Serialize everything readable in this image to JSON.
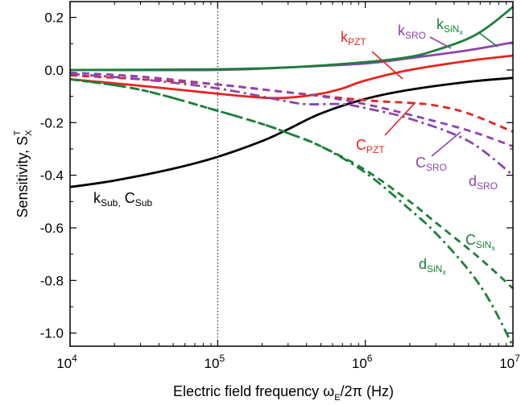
{
  "chart_data": {
    "type": "line",
    "xscale": "log",
    "xlim": [
      10000,
      10000000
    ],
    "ylim": [
      -1.05,
      0.26
    ],
    "xlabel": "Electric field frequency ω_E/2π (Hz)",
    "xlabel_parts": {
      "main": "Electric field frequency  ω",
      "sub": "E",
      "rest": "/2π (Hz)"
    },
    "ylabel_parts": {
      "main": "Sensitivity,  S",
      "sub": "X",
      "sup": "T"
    },
    "x_ticks": [
      {
        "value": 10000,
        "base": "10",
        "exp": "4"
      },
      {
        "value": 100000,
        "base": "10",
        "exp": "5"
      },
      {
        "value": 1000000,
        "base": "10",
        "exp": "6"
      },
      {
        "value": 10000000,
        "base": "10",
        "exp": "7"
      }
    ],
    "y_ticks": [
      {
        "value": 0.2,
        "label": "0.2"
      },
      {
        "value": 0.0,
        "label": "0.0"
      },
      {
        "value": -0.2,
        "label": "-0.2"
      },
      {
        "value": -0.4,
        "label": "-0.4"
      },
      {
        "value": -0.6,
        "label": "-0.6"
      },
      {
        "value": -0.8,
        "label": "-0.8"
      },
      {
        "value": -1.0,
        "label": "-1.0"
      }
    ],
    "reference_line": {
      "x": 100000,
      "style": "dotted"
    },
    "colors": {
      "red": "#e8231f",
      "purple": "#8e44ad",
      "green": "#1c7f3c",
      "black": "#000000"
    },
    "series": [
      {
        "name": "k_Sub, C_Sub",
        "color": "#000000",
        "dash": "solid",
        "x": [
          10000,
          20000,
          50000,
          100000,
          200000,
          300000,
          500000,
          1000000,
          2000000,
          5000000,
          10000000
        ],
        "y": [
          -0.445,
          -0.42,
          -0.375,
          -0.33,
          -0.27,
          -0.225,
          -0.165,
          -0.11,
          -0.075,
          -0.045,
          -0.03
        ]
      },
      {
        "name": "k_PZT",
        "color": "#e8231f",
        "dash": "solid",
        "x": [
          10000,
          30000,
          100000,
          200000,
          300000,
          500000,
          700000,
          1000000,
          2000000,
          5000000,
          10000000
        ],
        "y": [
          -0.035,
          -0.06,
          -0.09,
          -0.105,
          -0.105,
          -0.09,
          -0.07,
          -0.04,
          0.0,
          0.035,
          0.055
        ]
      },
      {
        "name": "C_PZT",
        "color": "#e8231f",
        "dash": "dash",
        "x": [
          10000,
          30000,
          100000,
          300000,
          1000000,
          2000000,
          3000000,
          5000000,
          10000000
        ],
        "y": [
          -0.02,
          -0.035,
          -0.055,
          -0.085,
          -0.115,
          -0.125,
          -0.135,
          -0.165,
          -0.235
        ]
      },
      {
        "name": "k_SRO",
        "color": "#8e44ad",
        "dash": "solid",
        "x": [
          10000,
          100000,
          300000,
          1000000,
          2000000,
          5000000,
          10000000
        ],
        "y": [
          0.0,
          0.0,
          0.01,
          0.025,
          0.045,
          0.075,
          0.105
        ]
      },
      {
        "name": "C_SRO",
        "color": "#8e44ad",
        "dash": "dash",
        "x": [
          10000,
          30000,
          100000,
          300000,
          500000,
          1000000,
          2000000,
          5000000,
          10000000
        ],
        "y": [
          -0.01,
          -0.025,
          -0.055,
          -0.085,
          -0.1,
          -0.13,
          -0.17,
          -0.23,
          -0.29
        ]
      },
      {
        "name": "d_SRO",
        "color": "#8e44ad",
        "dash": "dashdot",
        "x": [
          10000,
          30000,
          100000,
          300000,
          400000,
          700000,
          1000000,
          2000000,
          5000000,
          10000000
        ],
        "y": [
          -0.015,
          -0.035,
          -0.07,
          -0.12,
          -0.13,
          -0.13,
          -0.145,
          -0.185,
          -0.27,
          -0.4
        ]
      },
      {
        "name": "k_SiNx",
        "color": "#1c7f3c",
        "dash": "solid",
        "x": [
          10000,
          100000,
          300000,
          1000000,
          2000000,
          3000000,
          5000000,
          7000000,
          10000000
        ],
        "y": [
          0.0,
          0.003,
          0.01,
          0.03,
          0.05,
          0.075,
          0.12,
          0.17,
          0.24
        ]
      },
      {
        "name": "C_SiNx",
        "color": "#1c7f3c",
        "dash": "dash",
        "x": [
          10000,
          30000,
          100000,
          200000,
          300000,
          500000,
          1000000,
          2000000,
          3000000,
          5000000,
          7000000,
          10000000
        ],
        "y": [
          -0.035,
          -0.075,
          -0.155,
          -0.205,
          -0.24,
          -0.29,
          -0.38,
          -0.5,
          -0.58,
          -0.68,
          -0.75,
          -0.83
        ]
      },
      {
        "name": "d_SiNx",
        "color": "#1c7f3c",
        "dash": "dashdot",
        "x": [
          10000,
          30000,
          100000,
          200000,
          300000,
          500000,
          1000000,
          2000000,
          3000000,
          5000000,
          7000000,
          10000000
        ],
        "y": [
          -0.035,
          -0.075,
          -0.155,
          -0.205,
          -0.24,
          -0.29,
          -0.39,
          -0.53,
          -0.62,
          -0.76,
          -0.88,
          -1.05
        ]
      }
    ],
    "annotations": [
      {
        "main": "k",
        "sub": "SiN",
        "subsub": "x",
        "color": "#1c7f3c"
      },
      {
        "main": "k",
        "sub": "SRO",
        "color": "#8e44ad"
      },
      {
        "main": "k",
        "sub": "PZT",
        "color": "#e8231f"
      },
      {
        "main": "C",
        "sub": "PZT",
        "color": "#e8231f"
      },
      {
        "main": "C",
        "sub": "SRO",
        "color": "#8e44ad"
      },
      {
        "main": "d",
        "sub": "SRO",
        "color": "#8e44ad"
      },
      {
        "main": "k",
        "sub": "Sub,",
        "main2": " C",
        "sub2": "Sub",
        "color": "#000000"
      },
      {
        "main": "C",
        "sub": "SiN",
        "subsub": "x",
        "color": "#1c7f3c"
      },
      {
        "main": "d",
        "sub": "SiN",
        "subsub": "x",
        "color": "#1c7f3c"
      }
    ]
  }
}
